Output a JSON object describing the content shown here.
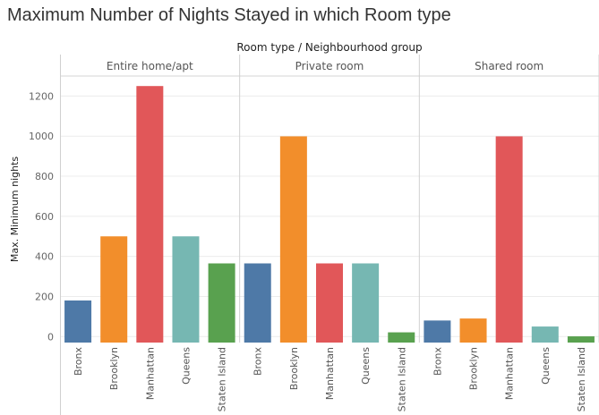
{
  "title": "Maximum Number of Nights Stayed in which Room type",
  "chart_data": {
    "type": "bar",
    "title": "Maximum Number of Nights Stayed in which Room type",
    "header": "Room type  /  Neighbourhood group",
    "ylabel": "Max. Minimum nights",
    "ylim": [
      -30,
      1300
    ],
    "yticks": [
      0,
      200,
      400,
      600,
      800,
      1000,
      1200
    ],
    "grid": true,
    "colors": {
      "Bronx": "#4e79a7",
      "Brooklyn": "#f28e2b",
      "Manhattan": "#e15759",
      "Queens": "#76b7b2",
      "Staten Island": "#59a14f"
    },
    "panels": [
      {
        "name": "Entire home/apt",
        "categories": [
          "Bronx",
          "Brooklyn",
          "Manhattan",
          "Queens",
          "Staten Island"
        ],
        "values": [
          180,
          500,
          1250,
          500,
          365
        ]
      },
      {
        "name": "Private room",
        "categories": [
          "Bronx",
          "Brooklyn",
          "Manhattan",
          "Queens",
          "Staten Island"
        ],
        "values": [
          365,
          999,
          365,
          365,
          21
        ]
      },
      {
        "name": "Shared room",
        "categories": [
          "Bronx",
          "Brooklyn",
          "Manhattan",
          "Queens",
          "Staten Island"
        ],
        "values": [
          80,
          90,
          999,
          50,
          1
        ]
      }
    ]
  }
}
